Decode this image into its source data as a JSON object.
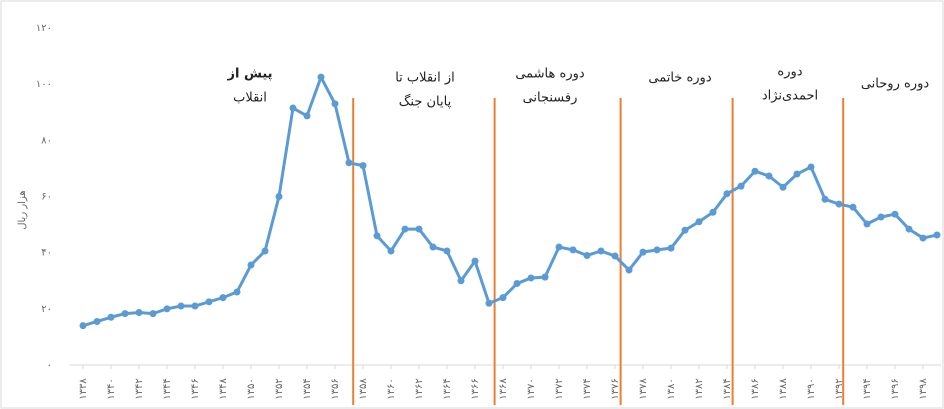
{
  "chart_data": {
    "type": "line",
    "y_label": "هزار ریال",
    "x": [
      1338,
      1339,
      1340,
      1341,
      1342,
      1343,
      1344,
      1345,
      1346,
      1347,
      1348,
      1349,
      1350,
      1351,
      1352,
      1353,
      1354,
      1355,
      1356,
      1357,
      1358,
      1359,
      1360,
      1361,
      1362,
      1363,
      1364,
      1365,
      1366,
      1367,
      1368,
      1369,
      1370,
      1371,
      1372,
      1373,
      1374,
      1375,
      1376,
      1377,
      1378,
      1379,
      1380,
      1381,
      1382,
      1383,
      1384,
      1385,
      1386,
      1387,
      1388,
      1389,
      1390,
      1391,
      1392,
      1393,
      1394,
      1395,
      1396,
      1397,
      1398,
      1399
    ],
    "series": [
      {
        "color": "#5b9bd5",
        "values": [
          14,
          15.5,
          17,
          18.3,
          18.7,
          18.3,
          20,
          21,
          21,
          22.5,
          24,
          26,
          35.6,
          40.6,
          60,
          91.5,
          88.7,
          102.5,
          93,
          72,
          71,
          46,
          40.6,
          48.4,
          48.4,
          42,
          40.6,
          30,
          37,
          22,
          24,
          29,
          31,
          31.3,
          42,
          41,
          39,
          40.6,
          38.8,
          33.8,
          40.2,
          41,
          41.6,
          48,
          51,
          54.4,
          61,
          63.7,
          69,
          67.3,
          63.3,
          68,
          70.5,
          59,
          57.3,
          56.2,
          50.2,
          52.7,
          53.7,
          48.4,
          45.2,
          46.3
        ]
      }
    ],
    "xlim": [
      1338,
      1399
    ],
    "ylim": [
      0,
      120
    ],
    "yticks": [
      {
        "value": 0,
        "label": "۰"
      },
      {
        "value": 20,
        "label": "۲۰"
      },
      {
        "value": 40,
        "label": "۴۰"
      },
      {
        "value": 60,
        "label": "۶۰"
      },
      {
        "value": 80,
        "label": "۸۰"
      },
      {
        "value": 100,
        "label": "۱۰۰"
      },
      {
        "value": 120,
        "label": "۱۲۰"
      }
    ],
    "xticks": [
      {
        "value": 1338,
        "label": "۱۳۳۸"
      },
      {
        "value": 1340,
        "label": "۱۳۴۰"
      },
      {
        "value": 1342,
        "label": "۱۳۴۲"
      },
      {
        "value": 1344,
        "label": "۱۳۴۴"
      },
      {
        "value": 1346,
        "label": "۱۳۴۶"
      },
      {
        "value": 1348,
        "label": "۱۳۴۸"
      },
      {
        "value": 1350,
        "label": "۱۳۵۰"
      },
      {
        "value": 1352,
        "label": "۱۳۵۲"
      },
      {
        "value": 1354,
        "label": "۱۳۵۴"
      },
      {
        "value": 1356,
        "label": "۱۳۵۶"
      },
      {
        "value": 1358,
        "label": "۱۳۵۸"
      },
      {
        "value": 1360,
        "label": "۱۳۶۰"
      },
      {
        "value": 1362,
        "label": "۱۳۶۲"
      },
      {
        "value": 1364,
        "label": "۱۳۶۴"
      },
      {
        "value": 1366,
        "label": "۱۳۶۶"
      },
      {
        "value": 1368,
        "label": "۱۳۶۸"
      },
      {
        "value": 1370,
        "label": "۱۳۷۰"
      },
      {
        "value": 1372,
        "label": "۱۳۷۲"
      },
      {
        "value": 1374,
        "label": "۱۳۷۴"
      },
      {
        "value": 1376,
        "label": "۱۳۷۶"
      },
      {
        "value": 1378,
        "label": "۱۳۷۸"
      },
      {
        "value": 1380,
        "label": "۱۳۸۰"
      },
      {
        "value": 1382,
        "label": "۱۳۸۲"
      },
      {
        "value": 1384,
        "label": "۱۳۸۴"
      },
      {
        "value": 1386,
        "label": "۱۳۸۶"
      },
      {
        "value": 1388,
        "label": "۱۳۸۸"
      },
      {
        "value": 1390,
        "label": "۱۳۹۰"
      },
      {
        "value": 1392,
        "label": "۱۳۹۲"
      },
      {
        "value": 1394,
        "label": "۱۳۹۴"
      },
      {
        "value": 1396,
        "label": "۱۳۹۶"
      },
      {
        "value": 1398,
        "label": "۱۳۹۸"
      }
    ],
    "dividers": {
      "color": "#ed7d31",
      "x": [
        1357.3,
        1367.4,
        1376.4,
        1384.4,
        1392.3
      ]
    },
    "periods": [
      {
        "lines": [
          "پیش از",
          "انقلاب"
        ]
      },
      {
        "lines": [
          "از انقلاب تا",
          "پایان جنگ"
        ]
      },
      {
        "lines": [
          "دوره  هاشمی",
          "رفسنجانی"
        ]
      },
      {
        "lines": [
          "دوره خاتمی"
        ]
      },
      {
        "lines": [
          "دوره",
          "احمدی‌نژاد"
        ]
      },
      {
        "lines": [
          "دوره روحانی"
        ]
      }
    ]
  }
}
